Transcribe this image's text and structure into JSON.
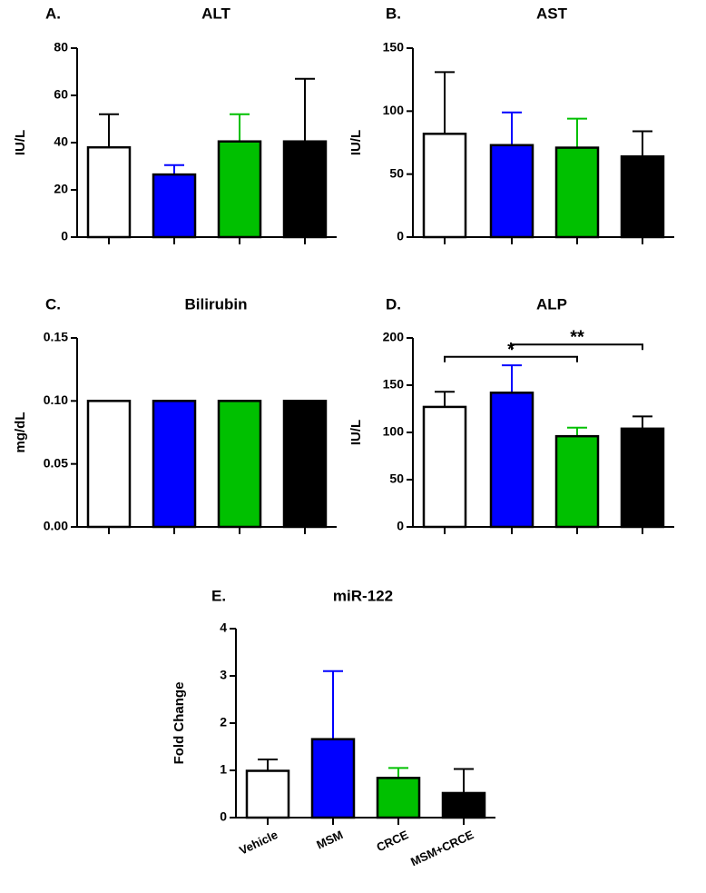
{
  "chart_data": [
    {
      "type": "bar",
      "panel": "A.",
      "title": "ALT",
      "ylabel": "IU/L",
      "categories": [
        null,
        null,
        null,
        null
      ],
      "values": [
        38,
        26.5,
        40.5,
        40.5
      ],
      "errors": [
        14,
        4,
        11.5,
        26.5
      ],
      "colors": [
        "#ffffff",
        "#0000ff",
        "#00c000",
        "#000000"
      ],
      "ylim": [
        0,
        80
      ],
      "yticks": [
        0,
        20,
        40,
        60,
        80
      ]
    },
    {
      "type": "bar",
      "panel": "B.",
      "title": "AST",
      "ylabel": "IU/L",
      "categories": [
        null,
        null,
        null,
        null
      ],
      "values": [
        82,
        73,
        71,
        64
      ],
      "errors": [
        49,
        26,
        23,
        20
      ],
      "colors": [
        "#ffffff",
        "#0000ff",
        "#00c000",
        "#000000"
      ],
      "ylim": [
        0,
        150
      ],
      "yticks": [
        0,
        50,
        100,
        150
      ]
    },
    {
      "type": "bar",
      "panel": "C.",
      "title": "Bilirubin",
      "ylabel": "mg/dL",
      "categories": [
        null,
        null,
        null,
        null
      ],
      "values": [
        0.1,
        0.1,
        0.1,
        0.1
      ],
      "colors": [
        "#ffffff",
        "#0000ff",
        "#00c000",
        "#000000"
      ],
      "ylim": [
        0,
        0.15
      ],
      "yticks": [
        {
          "value": 0,
          "label": "0.00"
        },
        {
          "value": 0.05,
          "label": "0.05"
        },
        {
          "value": 0.1,
          "label": "0.10"
        },
        {
          "value": 0.15,
          "label": "0.15"
        }
      ]
    },
    {
      "type": "bar",
      "panel": "D.",
      "title": "ALP",
      "ylabel": "IU/L",
      "categories": [
        null,
        null,
        null,
        null
      ],
      "values": [
        127,
        142,
        96,
        104
      ],
      "errors": [
        16,
        29,
        9,
        13
      ],
      "colors": [
        "#ffffff",
        "#0000ff",
        "#00c000",
        "#000000"
      ],
      "ylim": [
        0,
        200
      ],
      "yticks": [
        0,
        50,
        100,
        150,
        200
      ],
      "annotations": [
        {
          "text": "*",
          "between": [
            0,
            2
          ],
          "y": 180
        },
        {
          "text": "**",
          "between": [
            1,
            3
          ],
          "y": 193
        }
      ]
    },
    {
      "type": "bar",
      "panel": "E.",
      "title": "miR-122",
      "ylabel": "Fold Change",
      "categories": [
        "Vehicle",
        "MSM",
        "CRCE",
        "MSM+CRCE"
      ],
      "values": [
        0.99,
        1.66,
        0.84,
        0.52
      ],
      "errors": [
        0.24,
        1.44,
        0.21,
        0.51
      ],
      "colors": [
        "#ffffff",
        "#0000ff",
        "#00c000",
        "#000000"
      ],
      "ylim": [
        0,
        4
      ],
      "yticks": [
        0,
        1,
        2,
        3,
        4
      ]
    }
  ]
}
